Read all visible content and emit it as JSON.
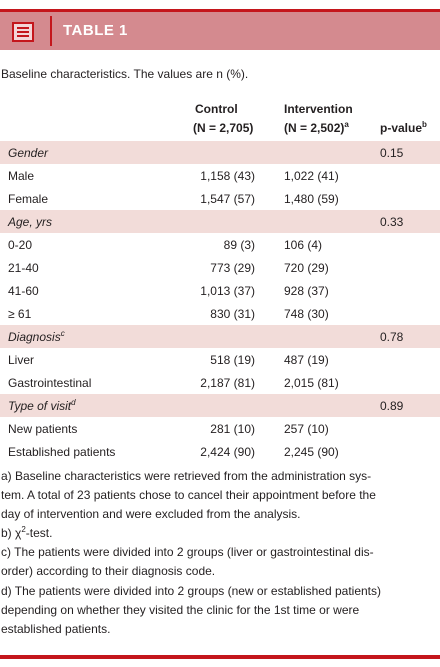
{
  "header": {
    "title": "TABLE 1",
    "icon": "document-icon",
    "accent": "#c4161c",
    "band": "#d48a8f"
  },
  "caption": "Baseline characteristics. The values are n (%).",
  "columns": {
    "control_name": "Control",
    "control_n": "(N = 2,705)",
    "intervention_name": "Intervention",
    "intervention_n": "(N = 2,502)",
    "intervention_sup": "a",
    "pvalue": "p-value",
    "pvalue_sup": "b"
  },
  "rows": [
    {
      "label": "Gender",
      "section": true,
      "p": "0.15"
    },
    {
      "label": "Male",
      "control": "1,158 (43)",
      "intervention": "1,022 (41)"
    },
    {
      "label": "Female",
      "control": "1,547 (57)",
      "intervention": "1,480 (59)"
    },
    {
      "label": "Age, yrs",
      "section": true,
      "p": "0.33"
    },
    {
      "label": "0-20",
      "control": "89 (3)",
      "intervention": "106 (4)"
    },
    {
      "label": "21-40",
      "control": "773 (29)",
      "intervention": "720 (29)"
    },
    {
      "label": "41-60",
      "control": "1,013 (37)",
      "intervention": "928 (37)"
    },
    {
      "label": "≥ 61",
      "control": "830 (31)",
      "intervention": "748 (30)"
    },
    {
      "label": "Diagnosis",
      "sup": "c",
      "section": true,
      "p": "0.78"
    },
    {
      "label": "Liver",
      "control": "518 (19)",
      "intervention": "487 (19)"
    },
    {
      "label": "Gastrointestinal",
      "control": "2,187 (81)",
      "intervention": "2,015 (81)"
    },
    {
      "label": "Type of visit",
      "sup": "d",
      "section": true,
      "p": "0.89"
    },
    {
      "label": "New patients",
      "control": "281 (10)",
      "intervention": "257 (10)"
    },
    {
      "label": "Established patients",
      "control": "2,424 (90)",
      "intervention": "2,245 (90)"
    }
  ],
  "notes": {
    "a1": "a) Baseline characteristics were retrieved from the administration sys-",
    "a2": "tem. A total of 23 patients chose to cancel their appointment before the",
    "a3": "day of intervention and were excluded from the analysis.",
    "b_prefix": "b) χ",
    "b_sup": "2",
    "b_suffix": "-test.",
    "c1": "c) The patients were divided into 2 groups (liver or gastrointestinal dis-",
    "c2": "order) according to their diagnosis code.",
    "d1": "d) The patients were divided into 2 groups (new or established patients)",
    "d2": "depending on whether they visited the clinic for the 1st time or were",
    "d3": "established patients."
  }
}
